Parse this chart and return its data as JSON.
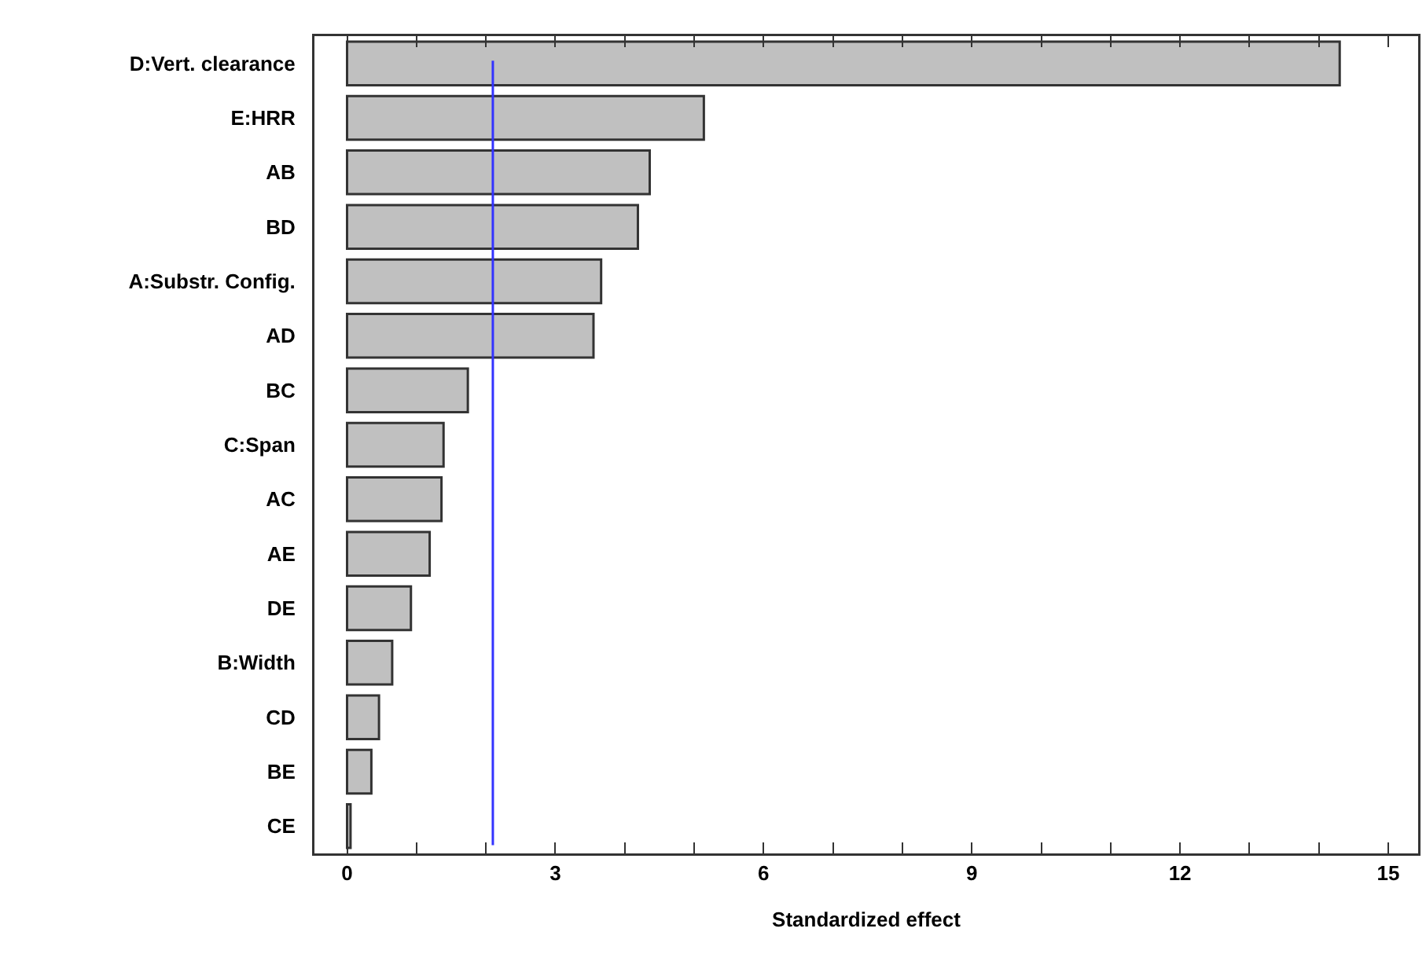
{
  "chart_data": {
    "type": "bar",
    "orientation": "horizontal",
    "xlabel": "Standardized effect",
    "categories": [
      "D:Vert. clearance",
      "E:HRR",
      "AB",
      "BD",
      "A:Substr. Config.",
      "AD",
      "BC",
      "C:Span",
      "AC",
      "AE",
      "DE",
      "B:Width",
      "CD",
      "BE",
      "CE"
    ],
    "values": [
      14.3,
      5.14,
      4.36,
      4.19,
      3.66,
      3.55,
      1.74,
      1.39,
      1.36,
      1.19,
      0.92,
      0.65,
      0.46,
      0.35,
      0.05
    ],
    "color": "#c0c0c0",
    "xlim": [
      -0.47,
      15.43
    ],
    "xticks": [
      0,
      {
        "value": 1,
        "label": null
      },
      {
        "value": 2,
        "label": null
      },
      3,
      {
        "value": 4,
        "label": null
      },
      {
        "value": 5,
        "label": null
      },
      6,
      {
        "value": 7,
        "label": null
      },
      {
        "value": 8,
        "label": null
      },
      9,
      {
        "value": 10,
        "label": null
      },
      {
        "value": 11,
        "label": null
      },
      12,
      {
        "value": 13,
        "label": null
      },
      {
        "value": 14,
        "label": null
      },
      15
    ],
    "ref_lines": [
      {
        "axis": "x",
        "value": 2.1,
        "color": "#3333ff"
      }
    ],
    "grid": false,
    "legend": false
  }
}
